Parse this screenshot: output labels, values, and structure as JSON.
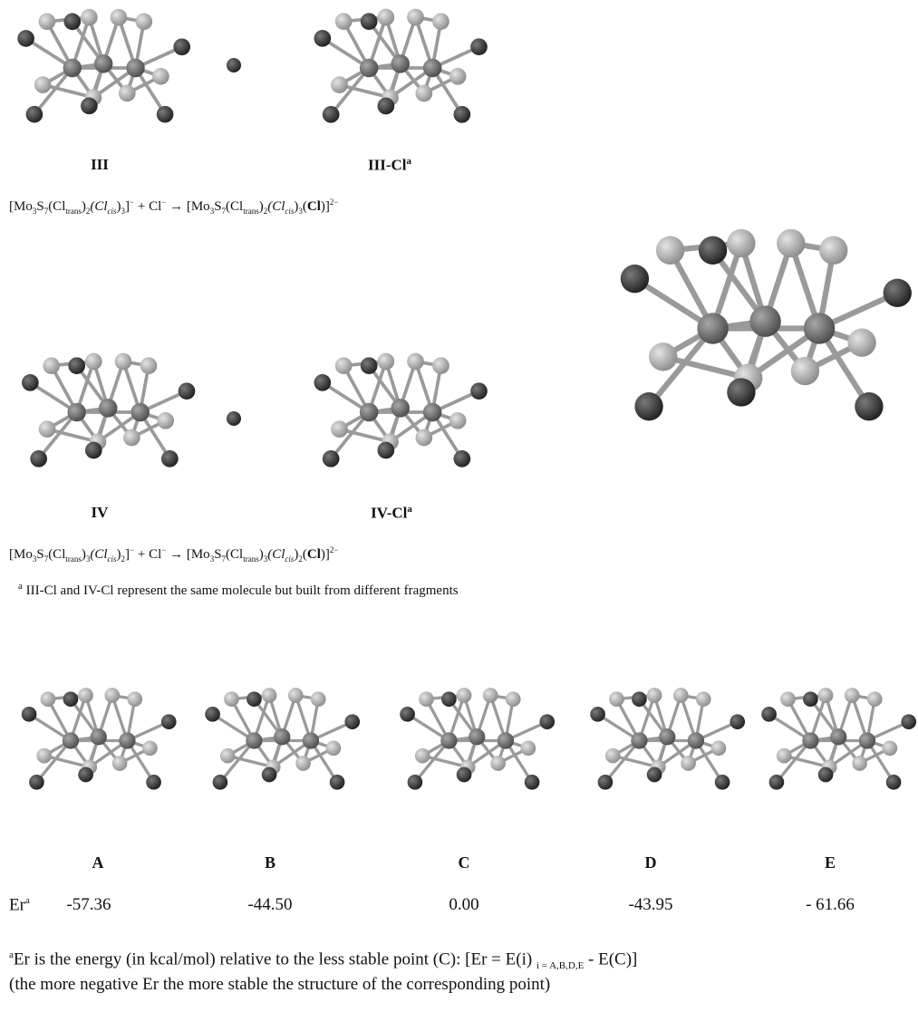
{
  "row1": {
    "left_label": "III",
    "right_label": "III-Cl",
    "right_label_note": "a",
    "equation": [
      "[Mo",
      "3",
      "S",
      "7",
      "(Cl",
      "trans",
      ")",
      "2",
      "(",
      "Cl",
      "cis",
      ")",
      "3",
      "]",
      "−",
      " + Cl",
      "−",
      " → [Mo",
      "3",
      "S",
      "7",
      "(Cl",
      "trans",
      ")",
      "2",
      "(",
      "Cl",
      "cis",
      ")",
      "3",
      "(",
      "Cl",
      ")]",
      "2−"
    ]
  },
  "row2": {
    "left_label": "IV",
    "right_label": "IV-Cl",
    "right_label_note": "a",
    "equation": [
      "[Mo",
      "3",
      "S",
      "7",
      "(Cl",
      "trans",
      ")",
      "3",
      "(",
      "Cl",
      "cis",
      ")",
      "2",
      "]",
      "−",
      " + Cl",
      "−",
      " → [Mo",
      "3",
      "S",
      "7",
      "(Cl",
      "trans",
      ")",
      "3",
      "(",
      "Cl",
      "cis",
      ")",
      "2",
      "(",
      "Cl",
      ")]",
      "2−"
    ]
  },
  "note": {
    "marker": "a",
    "text": "III-Cl and IV-Cl represent the same molecule but built from different fragments"
  },
  "energies": {
    "row_label": "Er",
    "row_label_note": "a",
    "points": [
      {
        "label": "A",
        "value": "-57.36"
      },
      {
        "label": "B",
        "value": "-44.50"
      },
      {
        "label": "C",
        "value": "0.00"
      },
      {
        "label": "D",
        "value": "-43.95"
      },
      {
        "label": "E",
        "value": "- 61.66"
      }
    ]
  },
  "energy_note": {
    "marker": "a",
    "text_1": "Er is the energy (in kcal/mol) relative to the less stable point (C): [Er = E(i)",
    "subscript": "i = A,B,D,E",
    "text_2": "- E(C)]",
    "line_2": "(the more negative Er the more stable the structure of the corresponding point)"
  }
}
